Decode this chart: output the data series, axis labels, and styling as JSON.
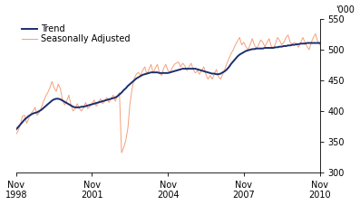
{
  "ylabel_right": "'000",
  "ylim": [
    300,
    550
  ],
  "yticks": [
    300,
    350,
    400,
    450,
    500,
    550
  ],
  "xtick_positions": [
    0,
    36,
    72,
    108,
    144
  ],
  "xtick_labels": [
    "Nov\n1998",
    "Nov\n2001",
    "Nov\n2004",
    "Nov\n2007",
    "Nov\n2010"
  ],
  "trend_color": "#1a2e6e",
  "seasonal_color": "#f4a07a",
  "legend_trend": "Trend",
  "legend_seasonal": "Seasonally Adjusted",
  "trend": [
    370,
    374,
    378,
    382,
    386,
    389,
    392,
    394,
    396,
    397,
    398,
    400,
    402,
    405,
    408,
    411,
    414,
    417,
    419,
    420,
    420,
    419,
    417,
    415,
    413,
    411,
    409,
    407,
    406,
    406,
    406,
    407,
    407,
    408,
    409,
    410,
    411,
    412,
    413,
    414,
    415,
    416,
    417,
    418,
    419,
    420,
    421,
    422,
    424,
    427,
    430,
    434,
    437,
    441,
    444,
    447,
    450,
    453,
    455,
    457,
    459,
    460,
    461,
    462,
    463,
    463,
    463,
    463,
    462,
    462,
    462,
    462,
    462,
    463,
    464,
    465,
    466,
    467,
    468,
    469,
    469,
    469,
    469,
    469,
    469,
    469,
    468,
    467,
    466,
    465,
    464,
    463,
    462,
    461,
    461,
    460,
    460,
    461,
    463,
    465,
    468,
    472,
    477,
    481,
    485,
    489,
    492,
    494,
    496,
    498,
    499,
    500,
    501,
    501,
    502,
    502,
    502,
    502,
    503,
    503,
    503,
    503,
    503,
    504,
    504,
    505,
    505,
    506,
    506,
    507,
    507,
    508,
    508,
    509,
    509,
    510,
    510,
    510,
    511,
    511,
    511,
    511,
    511,
    511,
    511,
    511,
    510
  ],
  "seasonal": [
    362,
    368,
    378,
    392,
    393,
    380,
    388,
    396,
    400,
    406,
    393,
    398,
    406,
    416,
    424,
    430,
    438,
    448,
    438,
    432,
    444,
    436,
    418,
    410,
    416,
    426,
    410,
    400,
    404,
    412,
    404,
    400,
    406,
    414,
    404,
    408,
    412,
    418,
    408,
    414,
    420,
    412,
    416,
    422,
    414,
    420,
    426,
    416,
    424,
    430,
    332,
    340,
    352,
    372,
    412,
    436,
    453,
    460,
    463,
    458,
    466,
    472,
    460,
    468,
    476,
    462,
    470,
    476,
    462,
    458,
    470,
    476,
    466,
    462,
    470,
    476,
    478,
    480,
    472,
    478,
    474,
    466,
    472,
    478,
    468,
    462,
    466,
    460,
    466,
    472,
    460,
    452,
    458,
    452,
    460,
    468,
    456,
    452,
    460,
    468,
    478,
    486,
    494,
    500,
    508,
    514,
    520,
    508,
    512,
    505,
    500,
    508,
    518,
    508,
    502,
    508,
    516,
    512,
    505,
    512,
    518,
    506,
    502,
    510,
    520,
    515,
    508,
    512,
    520,
    524,
    512,
    509,
    512,
    508,
    504,
    512,
    520,
    512,
    505,
    500,
    512,
    520,
    526,
    514,
    508,
    512,
    520
  ]
}
